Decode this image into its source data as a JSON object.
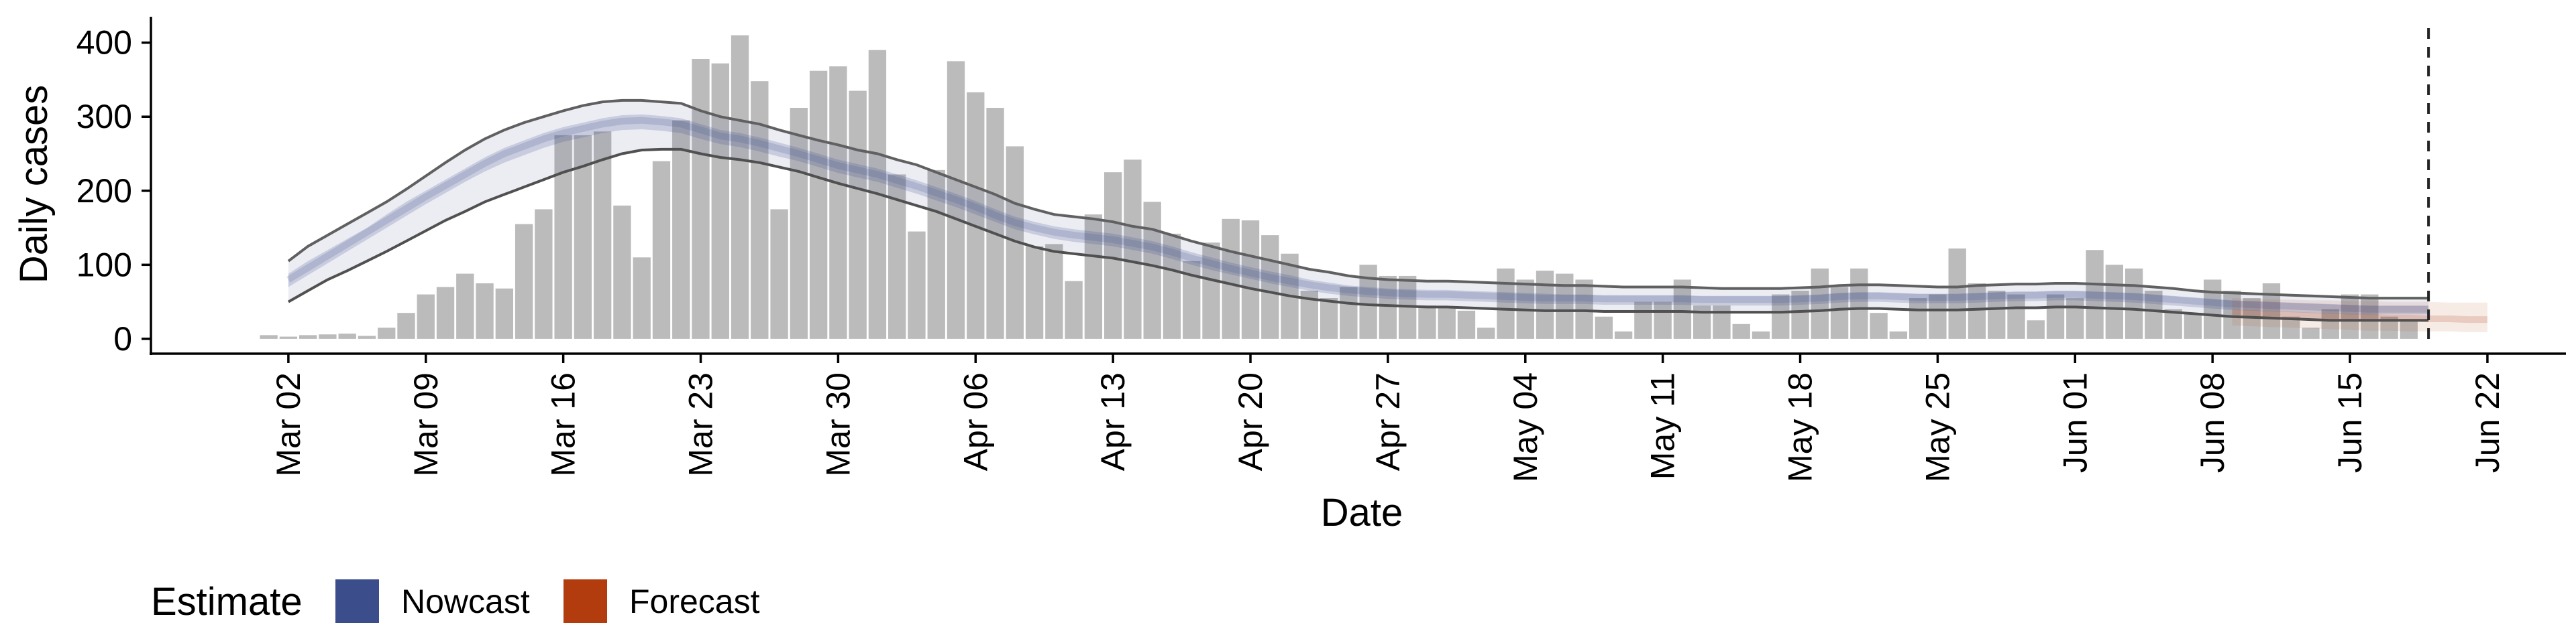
{
  "chart_data": {
    "type": "bar",
    "xlabel": "Date",
    "ylabel": "Daily cases",
    "ylim": [
      -20,
      435
    ],
    "yticks": [
      0,
      100,
      200,
      300,
      400
    ],
    "x_range": [
      "2020-02-24",
      "2020-06-26"
    ],
    "x_ticks": [
      {
        "date": "2020-03-02",
        "label": "Mar 02"
      },
      {
        "date": "2020-03-09",
        "label": "Mar 09"
      },
      {
        "date": "2020-03-16",
        "label": "Mar 16"
      },
      {
        "date": "2020-03-23",
        "label": "Mar 23"
      },
      {
        "date": "2020-03-30",
        "label": "Mar 30"
      },
      {
        "date": "2020-04-06",
        "label": "Apr 06"
      },
      {
        "date": "2020-04-13",
        "label": "Apr 13"
      },
      {
        "date": "2020-04-20",
        "label": "Apr 20"
      },
      {
        "date": "2020-04-27",
        "label": "Apr 27"
      },
      {
        "date": "2020-05-04",
        "label": "May 04"
      },
      {
        "date": "2020-05-11",
        "label": "May 11"
      },
      {
        "date": "2020-05-18",
        "label": "May 18"
      },
      {
        "date": "2020-05-25",
        "label": "May 25"
      },
      {
        "date": "2020-06-01",
        "label": "Jun 01"
      },
      {
        "date": "2020-06-08",
        "label": "Jun 08"
      },
      {
        "date": "2020-06-15",
        "label": "Jun 15"
      },
      {
        "date": "2020-06-22",
        "label": "Jun 22"
      }
    ],
    "bars": {
      "start_date": "2020-03-01",
      "values": [
        5,
        3,
        5,
        6,
        7,
        4,
        15,
        35,
        60,
        70,
        88,
        75,
        68,
        155,
        175,
        275,
        275,
        280,
        180,
        110,
        240,
        295,
        378,
        372,
        410,
        348,
        175,
        312,
        362,
        368,
        335,
        390,
        222,
        145,
        228,
        375,
        333,
        312,
        260,
        125,
        128,
        78,
        168,
        225,
        242,
        185,
        142,
        105,
        130,
        162,
        160,
        140,
        115,
        65,
        55,
        70,
        100,
        85,
        85,
        45,
        42,
        38,
        15,
        95,
        80,
        92,
        88,
        80,
        30,
        10,
        50,
        50,
        80,
        45,
        45,
        20,
        10,
        60,
        65,
        95,
        70,
        95,
        35,
        10,
        55,
        60,
        122,
        75,
        65,
        60,
        25,
        60,
        55,
        120,
        100,
        95,
        65,
        40,
        35,
        80,
        65,
        55,
        75,
        30,
        15,
        40,
        60,
        60,
        30,
        25
      ]
    },
    "reference_line_date": "2020-06-19",
    "series": [
      {
        "name": "Nowcast",
        "color": "#3b4d8b",
        "start_date": "2020-03-02",
        "upper_90": [
          105,
          125,
          140,
          155,
          170,
          185,
          202,
          220,
          238,
          255,
          270,
          282,
          292,
          300,
          308,
          315,
          320,
          322,
          322,
          320,
          318,
          308,
          300,
          295,
          290,
          282,
          275,
          268,
          262,
          255,
          250,
          242,
          235,
          225,
          215,
          205,
          195,
          183,
          175,
          168,
          165,
          162,
          158,
          152,
          148,
          140,
          132,
          125,
          118,
          112,
          106,
          100,
          94,
          90,
          85,
          82,
          80,
          79,
          78,
          78,
          77,
          76,
          75,
          74,
          73,
          72,
          72,
          71,
          70,
          70,
          70,
          70,
          69,
          68,
          68,
          68,
          68,
          69,
          70,
          72,
          73,
          73,
          72,
          71,
          70,
          70,
          72,
          73,
          74,
          74,
          75,
          75,
          74,
          73,
          72,
          70,
          68,
          65,
          63,
          62,
          61,
          60,
          59,
          58,
          57,
          56,
          55,
          55,
          55,
          55
        ],
        "upper_50": [
          88,
          105,
          120,
          135,
          150,
          168,
          185,
          200,
          215,
          230,
          245,
          258,
          268,
          278,
          286,
          292,
          298,
          302,
          303,
          301,
          298,
          290,
          282,
          278,
          272,
          265,
          258,
          250,
          242,
          236,
          230,
          222,
          214,
          205,
          196,
          186,
          175,
          165,
          158,
          152,
          148,
          145,
          142,
          137,
          132,
          125,
          117,
          110,
          103,
          97,
          91,
          86,
          80,
          76,
          72,
          70,
          68,
          67,
          66,
          66,
          65,
          64,
          63,
          62,
          61,
          60,
          60,
          59,
          59,
          59,
          59,
          59,
          58,
          58,
          58,
          58,
          58,
          59,
          60,
          62,
          63,
          63,
          62,
          61,
          61,
          61,
          62,
          63,
          64,
          64,
          65,
          65,
          64,
          63,
          62,
          60,
          58,
          56,
          54,
          52,
          51,
          50,
          49,
          48,
          47,
          46,
          45,
          45,
          45,
          45
        ],
        "median": [
          80,
          96,
          112,
          128,
          144,
          160,
          176,
          192,
          207,
          222,
          237,
          250,
          260,
          270,
          278,
          284,
          290,
          294,
          295,
          293,
          290,
          282,
          274,
          270,
          264,
          257,
          250,
          242,
          234,
          228,
          222,
          214,
          206,
          197,
          188,
          178,
          167,
          157,
          150,
          144,
          140,
          137,
          134,
          129,
          124,
          117,
          109,
          102,
          95,
          89,
          83,
          78,
          73,
          69,
          66,
          64,
          62,
          61,
          60,
          60,
          59,
          58,
          57,
          56,
          55,
          55,
          55,
          54,
          54,
          54,
          54,
          54,
          53,
          53,
          53,
          53,
          53,
          54,
          55,
          57,
          58,
          58,
          57,
          56,
          56,
          56,
          57,
          58,
          59,
          59,
          60,
          60,
          59,
          58,
          57,
          55,
          53,
          51,
          49,
          47,
          46,
          45,
          44,
          43,
          42,
          41,
          40,
          40,
          40,
          40
        ],
        "lower_50": [
          70,
          86,
          102,
          118,
          134,
          150,
          166,
          182,
          197,
          212,
          226,
          238,
          248,
          258,
          266,
          272,
          278,
          282,
          283,
          281,
          278,
          270,
          263,
          259,
          253,
          246,
          240,
          232,
          224,
          218,
          212,
          204,
          196,
          187,
          178,
          168,
          158,
          148,
          141,
          135,
          131,
          128,
          125,
          120,
          115,
          108,
          100,
          93,
          87,
          81,
          75,
          70,
          65,
          61,
          58,
          56,
          54,
          53,
          52,
          52,
          51,
          50,
          49,
          48,
          47,
          47,
          47,
          46,
          46,
          46,
          46,
          46,
          45,
          45,
          45,
          45,
          45,
          46,
          47,
          49,
          50,
          50,
          49,
          48,
          48,
          48,
          49,
          50,
          51,
          51,
          52,
          52,
          51,
          50,
          49,
          47,
          45,
          43,
          41,
          39,
          38,
          37,
          36,
          35,
          34,
          33,
          33,
          33,
          33,
          33
        ],
        "lower_90": [
          50,
          65,
          80,
          92,
          105,
          118,
          132,
          146,
          160,
          172,
          185,
          195,
          205,
          215,
          225,
          233,
          242,
          250,
          255,
          256,
          256,
          250,
          245,
          242,
          238,
          232,
          226,
          218,
          210,
          203,
          196,
          188,
          180,
          172,
          162,
          152,
          142,
          132,
          124,
          118,
          115,
          112,
          109,
          104,
          99,
          93,
          86,
          80,
          74,
          68,
          63,
          58,
          54,
          51,
          48,
          46,
          45,
          44,
          43,
          43,
          42,
          41,
          40,
          39,
          38,
          38,
          38,
          37,
          37,
          37,
          37,
          37,
          36,
          36,
          36,
          36,
          36,
          37,
          38,
          40,
          41,
          41,
          40,
          39,
          39,
          39,
          40,
          41,
          42,
          42,
          43,
          43,
          42,
          41,
          40,
          38,
          36,
          34,
          32,
          30,
          29,
          28,
          27,
          26,
          25,
          25,
          25,
          25,
          25,
          25
        ]
      },
      {
        "name": "Forecast",
        "color": "#b33c0e",
        "start_date": "2020-06-09",
        "upper_90": [
          55,
          54,
          53,
          53,
          52,
          52,
          51,
          51,
          50,
          50,
          50,
          49,
          49,
          49
        ],
        "median": [
          35,
          34,
          33,
          32,
          31,
          30,
          29,
          29,
          28,
          28,
          27,
          27,
          26,
          26
        ],
        "lower_90": [
          18,
          17,
          16,
          15,
          14,
          13,
          12,
          11,
          11,
          10,
          10,
          10,
          9,
          9
        ]
      }
    ],
    "legend": {
      "title": "Estimate",
      "position": "bottom",
      "items": [
        {
          "label": "Nowcast",
          "color": "#3b4d8b"
        },
        {
          "label": "Forecast",
          "color": "#b33c0e"
        }
      ]
    },
    "grid": false
  }
}
